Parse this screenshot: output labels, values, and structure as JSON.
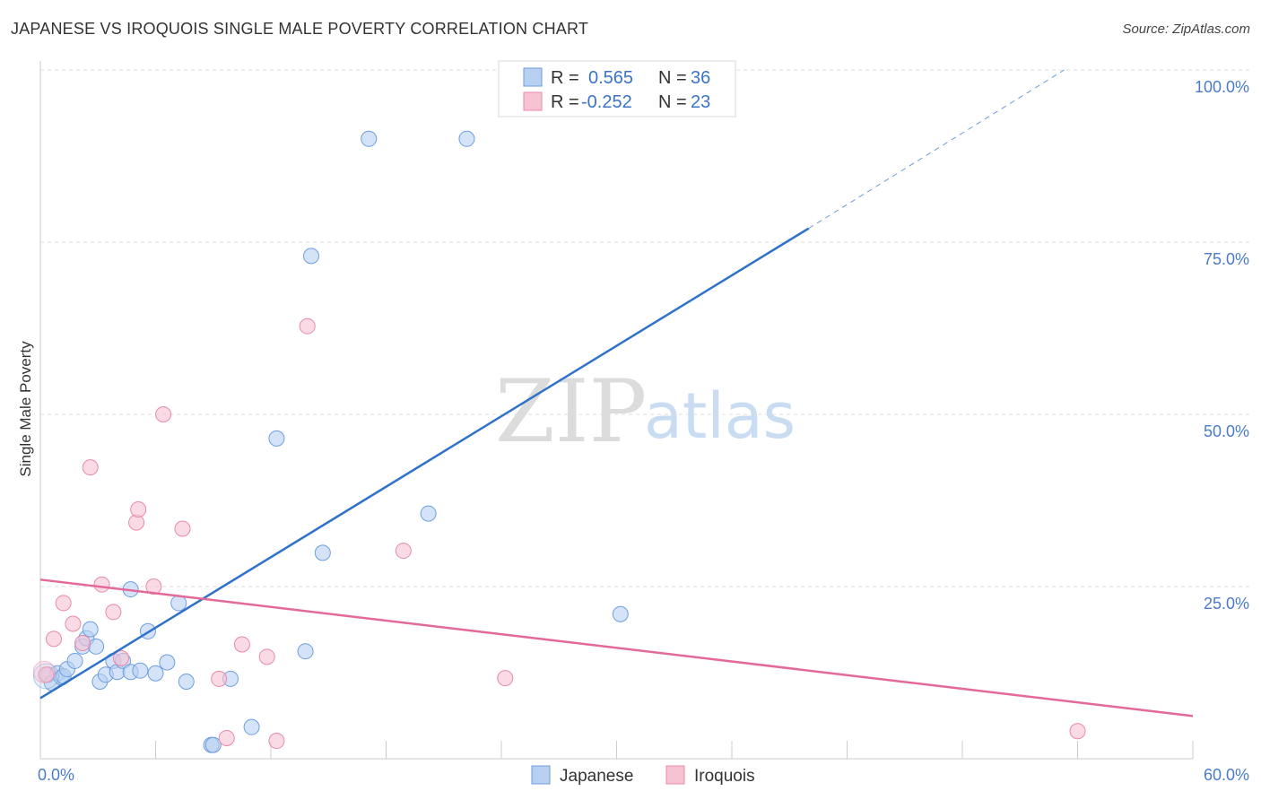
{
  "title": "JAPANESE VS IROQUOIS SINGLE MALE POVERTY CORRELATION CHART",
  "source": "Source: ZipAtlas.com",
  "watermark": {
    "zip": "ZIP",
    "atlas": "atlas"
  },
  "colors": {
    "japanese_fill": "#b7d0f2",
    "japanese_stroke": "#6e9ede",
    "japanese_line": "#2e72c9",
    "iroquois_fill": "#f7c3d3",
    "iroquois_stroke": "#e88aa8",
    "iroquois_line": "#e2699a",
    "grid": "#dddddd",
    "axis_label": "#4a7cc7"
  },
  "legend": {
    "japanese": {
      "r_label": "R =",
      "r_value": "0.565",
      "n_label": "N =",
      "n_value": "36"
    },
    "iroquois": {
      "r_label": "R =",
      "r_value": "-0.252",
      "n_label": "N =",
      "n_value": "23"
    }
  },
  "bottom_legend": {
    "japanese": "Japanese",
    "iroquois": "Iroquois"
  },
  "chart_data": {
    "type": "scatter",
    "title": "JAPANESE VS IROQUOIS SINGLE MALE POVERTY CORRELATION CHART",
    "xlabel": "",
    "ylabel": "Single Male Poverty",
    "xlim": [
      0,
      60
    ],
    "ylim": [
      0,
      100
    ],
    "x_tick_labels": [
      {
        "value": 0,
        "label": "0.0%"
      },
      {
        "value": 60,
        "label": "60.0%"
      }
    ],
    "y_tick_labels": [
      {
        "value": 25,
        "label": "25.0%"
      },
      {
        "value": 50,
        "label": "50.0%"
      },
      {
        "value": 75,
        "label": "75.0%"
      },
      {
        "value": 100,
        "label": "100.0%"
      }
    ],
    "x_minor_ticks": [
      0,
      6,
      12,
      18,
      24,
      30,
      36,
      42,
      48,
      54,
      60
    ],
    "grid": true,
    "series": [
      {
        "name": "Japanese",
        "points": [
          [
            0.4,
            12.2
          ],
          [
            0.6,
            11.0
          ],
          [
            0.9,
            12.4
          ],
          [
            1.1,
            11.8
          ],
          [
            1.2,
            12.0
          ],
          [
            1.4,
            13.0
          ],
          [
            1.8,
            14.2
          ],
          [
            2.2,
            16.3
          ],
          [
            2.4,
            17.5
          ],
          [
            2.6,
            18.8
          ],
          [
            2.9,
            16.3
          ],
          [
            3.1,
            11.2
          ],
          [
            3.4,
            12.2
          ],
          [
            3.8,
            14.2
          ],
          [
            4.0,
            12.6
          ],
          [
            4.3,
            14.2
          ],
          [
            4.7,
            12.6
          ],
          [
            4.7,
            24.6
          ],
          [
            5.2,
            12.8
          ],
          [
            5.6,
            18.5
          ],
          [
            6.0,
            12.4
          ],
          [
            6.6,
            14.0
          ],
          [
            7.2,
            22.6
          ],
          [
            7.6,
            11.2
          ],
          [
            8.9,
            2.0
          ],
          [
            9.0,
            2.0
          ],
          [
            9.9,
            11.6
          ],
          [
            11.0,
            4.6
          ],
          [
            12.3,
            46.5
          ],
          [
            13.8,
            15.6
          ],
          [
            14.1,
            73.0
          ],
          [
            14.7,
            29.9
          ],
          [
            17.1,
            90.0
          ],
          [
            20.2,
            35.6
          ],
          [
            22.2,
            90.0
          ],
          [
            30.2,
            21.0
          ]
        ]
      },
      {
        "name": "Iroquois",
        "points": [
          [
            0.3,
            12.2
          ],
          [
            0.7,
            17.4
          ],
          [
            1.2,
            22.6
          ],
          [
            1.7,
            19.6
          ],
          [
            2.2,
            16.8
          ],
          [
            2.6,
            42.3
          ],
          [
            3.2,
            25.3
          ],
          [
            3.8,
            21.3
          ],
          [
            4.2,
            14.6
          ],
          [
            5.0,
            34.3
          ],
          [
            5.1,
            36.2
          ],
          [
            5.9,
            25.0
          ],
          [
            6.4,
            50.0
          ],
          [
            7.4,
            33.4
          ],
          [
            9.3,
            11.6
          ],
          [
            9.7,
            3.0
          ],
          [
            10.5,
            16.6
          ],
          [
            11.8,
            14.8
          ],
          [
            12.3,
            2.6
          ],
          [
            13.9,
            62.8
          ],
          [
            18.9,
            30.2
          ],
          [
            24.2,
            11.7
          ],
          [
            54.0,
            4.0
          ]
        ]
      }
    ],
    "trend_lines": [
      {
        "series": "Japanese",
        "x": [
          0,
          40,
          53.3
        ],
        "y": [
          8.8,
          77.0,
          100.0
        ],
        "dashed_from_x": 40
      },
      {
        "series": "Iroquois",
        "x": [
          0,
          60
        ],
        "y": [
          26.0,
          6.2
        ]
      }
    ]
  }
}
